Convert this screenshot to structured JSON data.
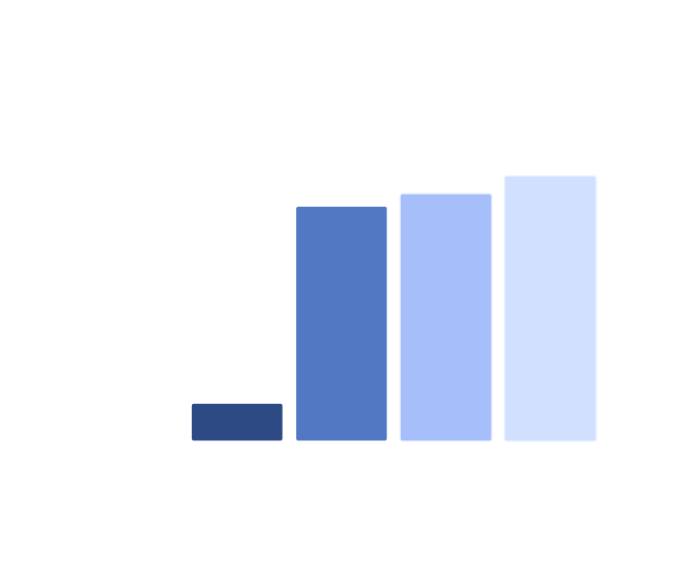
{
  "chart_data": {
    "type": "bar",
    "values": [
      43,
      265,
      279,
      299
    ],
    "ylim": [
      0,
      300
    ],
    "grid": false,
    "colors": [
      "#2e4a84",
      "#5278c3",
      "#a6bffa",
      "#d1e0fe"
    ],
    "edge_colors": [
      "#ffffff",
      "#ffffff",
      "#eef3ff",
      "#eef3ff"
    ]
  }
}
